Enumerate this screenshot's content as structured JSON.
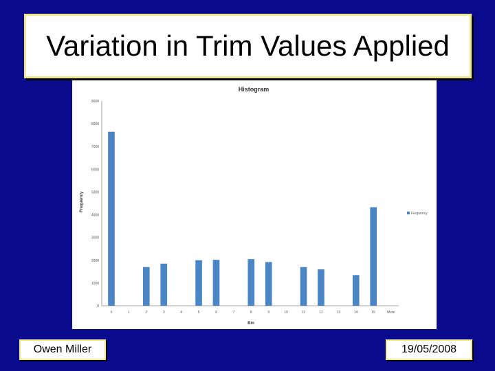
{
  "slide": {
    "title": "Variation in Trim Values Applied",
    "footer_left": "Owen Miller",
    "footer_right": "19/05/2008"
  },
  "colors": {
    "background": "#0a0a8c",
    "bar": "#4a86c5",
    "title_border": "#f0e68c"
  },
  "chart_data": {
    "type": "bar",
    "title": "Histogram",
    "xlabel": "Bin",
    "ylabel": "Frequency",
    "categories": [
      "0",
      "1",
      "2",
      "3",
      "4",
      "5",
      "6",
      "7",
      "8",
      "9",
      "10",
      "11",
      "12",
      "13",
      "14",
      "15",
      "More"
    ],
    "series": [
      {
        "name": "Frequency",
        "values": [
          7650,
          0,
          1700,
          1850,
          0,
          2000,
          2020,
          0,
          2050,
          1920,
          0,
          1700,
          1600,
          0,
          1350,
          4330,
          0
        ]
      }
    ],
    "ylim": [
      0,
      9000
    ],
    "yticks": [
      "0",
      "1000",
      "2000",
      "3000",
      "4000",
      "5000",
      "6000",
      "7000",
      "8000",
      "9000"
    ],
    "grid": false,
    "legend": "right"
  }
}
